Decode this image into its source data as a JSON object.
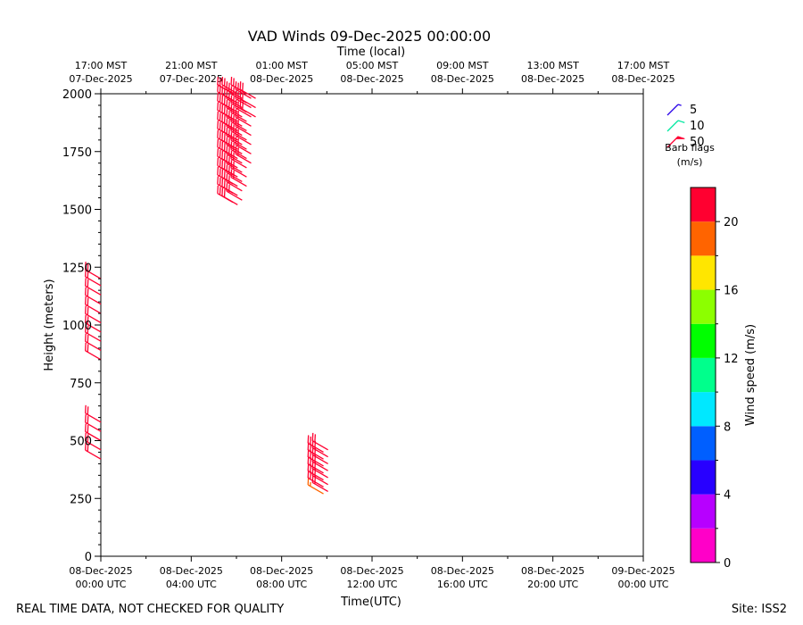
{
  "chart_data": {
    "type": "wind-barb",
    "title": "VAD Winds 09-Dec-2025 00:00:00",
    "top_axis_label": "Time (local)",
    "xlabel": "Time(UTC)",
    "ylabel": "Height (meters)",
    "x_range_hours": [
      0,
      24
    ],
    "ylim": [
      0,
      2000
    ],
    "y_ticks": [
      0,
      250,
      500,
      750,
      1000,
      1250,
      1500,
      1750,
      2000
    ],
    "x_ticks": [
      {
        "hour": 0,
        "date": "08-Dec-2025",
        "time": "00:00 UTC"
      },
      {
        "hour": 4,
        "date": "08-Dec-2025",
        "time": "04:00 UTC"
      },
      {
        "hour": 8,
        "date": "08-Dec-2025",
        "time": "08:00 UTC"
      },
      {
        "hour": 12,
        "date": "08-Dec-2025",
        "time": "12:00 UTC"
      },
      {
        "hour": 16,
        "date": "08-Dec-2025",
        "time": "16:00 UTC"
      },
      {
        "hour": 20,
        "date": "08-Dec-2025",
        "time": "20:00 UTC"
      },
      {
        "hour": 24,
        "date": "09-Dec-2025",
        "time": "00:00 UTC"
      }
    ],
    "top_ticks": [
      {
        "hour": 0,
        "time": "17:00 MST",
        "date": "07-Dec-2025"
      },
      {
        "hour": 4,
        "time": "21:00 MST",
        "date": "07-Dec-2025"
      },
      {
        "hour": 8,
        "time": "01:00 MST",
        "date": "08-Dec-2025"
      },
      {
        "hour": 12,
        "time": "05:00 MST",
        "date": "08-Dec-2025"
      },
      {
        "hour": 16,
        "time": "09:00 MST",
        "date": "08-Dec-2025"
      },
      {
        "hour": 20,
        "time": "13:00 MST",
        "date": "08-Dec-2025"
      },
      {
        "hour": 24,
        "time": "17:00 MST",
        "date": "08-Dec-2025"
      }
    ],
    "barb_groups": [
      {
        "hour": 0.0,
        "heights": [
          420,
          460,
          500,
          540,
          580
        ],
        "speed": 22,
        "dir": 300
      },
      {
        "hour": 0.0,
        "heights": [
          850,
          890,
          930,
          970,
          1010,
          1050,
          1090,
          1130,
          1170,
          1200
        ],
        "speed": 22,
        "dir": 300
      },
      {
        "hour": 5.85,
        "heights": [
          1530,
          1570,
          1610,
          1650,
          1690,
          1730,
          1770,
          1810,
          1850,
          1890,
          1930,
          1970,
          2000
        ],
        "speed": 22,
        "dir": 300
      },
      {
        "hour": 6.05,
        "heights": [
          1520,
          1560,
          1600,
          1640,
          1680,
          1720,
          1760,
          1800,
          1840,
          1880,
          1920,
          1960,
          2000
        ],
        "speed": 22,
        "dir": 300
      },
      {
        "hour": 6.25,
        "heights": [
          1540,
          1580,
          1620,
          1660,
          1700,
          1740,
          1780,
          1820,
          1860,
          1900,
          1940,
          1980
        ],
        "speed": 22,
        "dir": 300
      },
      {
        "hour": 6.45,
        "heights": [
          1600,
          1640,
          1680,
          1720,
          1760,
          1800,
          1840,
          1880,
          1920,
          1960,
          2000
        ],
        "speed": 22,
        "dir": 300
      },
      {
        "hour": 6.65,
        "heights": [
          1700,
          1740,
          1780,
          1820,
          1860,
          1900,
          1940,
          1980
        ],
        "speed": 22,
        "dir": 300
      },
      {
        "hour": 6.85,
        "heights": [
          1900,
          1940,
          1980
        ],
        "speed": 22,
        "dir": 300
      },
      {
        "hour": 9.85,
        "heights": [
          270
        ],
        "speed": 19,
        "dir": 300
      },
      {
        "hour": 9.85,
        "heights": [
          300,
          330,
          360,
          390,
          420,
          450
        ],
        "speed": 22,
        "dir": 300
      },
      {
        "hour": 10.05,
        "heights": [
          280,
          310,
          340,
          370,
          400,
          430,
          460
        ],
        "speed": 22,
        "dir": 300
      }
    ],
    "barb_legend": [
      {
        "label": "5",
        "speed": 5,
        "color": "#2800e8"
      },
      {
        "label": "10",
        "speed": 10,
        "color": "#00e8a0"
      },
      {
        "label": "50",
        "speed": 50,
        "color": "#ff0033"
      }
    ],
    "barb_legend_title": "Barb flags",
    "barb_legend_units": "(m/s)",
    "colorbar": {
      "label": "Wind speed (m/s)",
      "min": 0,
      "max": 22,
      "ticks": [
        0,
        4,
        8,
        12,
        16,
        20
      ],
      "colors": [
        "#ff00c8",
        "#b700ff",
        "#2800ff",
        "#005fff",
        "#00e8ff",
        "#00ff8c",
        "#00ff00",
        "#8cff00",
        "#ffe600",
        "#ff6400",
        "#ff0030"
      ]
    }
  },
  "footer": {
    "left": "REAL TIME DATA, NOT CHECKED FOR QUALITY",
    "right": "Site: ISS2"
  }
}
